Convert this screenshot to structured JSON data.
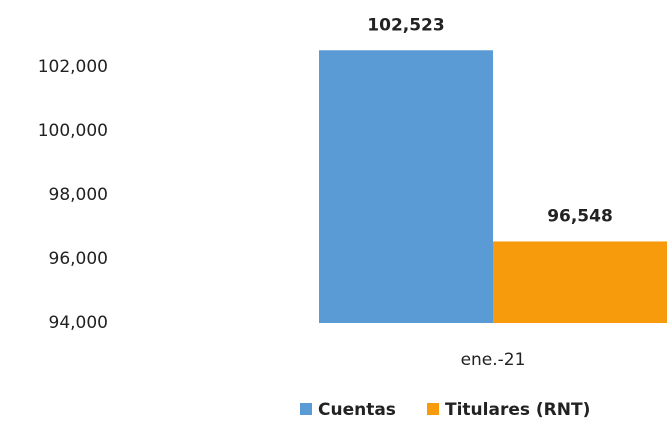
{
  "chart_data": {
    "type": "bar",
    "categories": [
      "ene.-21"
    ],
    "series": [
      {
        "name": "Cuentas",
        "color": "#5b9bd5",
        "values": [
          102523
        ],
        "value_labels": [
          "102,523"
        ]
      },
      {
        "name": "Titulares (RNT)",
        "color": "#f79a0c",
        "values": [
          96548
        ],
        "value_labels": [
          "96,548"
        ]
      }
    ],
    "ylim": [
      94000,
      104000
    ],
    "yticks": [
      {
        "value": 94000,
        "label": "94,000"
      },
      {
        "value": 96000,
        "label": "96,000"
      },
      {
        "value": 98000,
        "label": "98,000"
      },
      {
        "value": 100000,
        "label": "100,000"
      },
      {
        "value": 102000,
        "label": "102,000"
      }
    ],
    "grid": false,
    "legend": "bottom"
  }
}
